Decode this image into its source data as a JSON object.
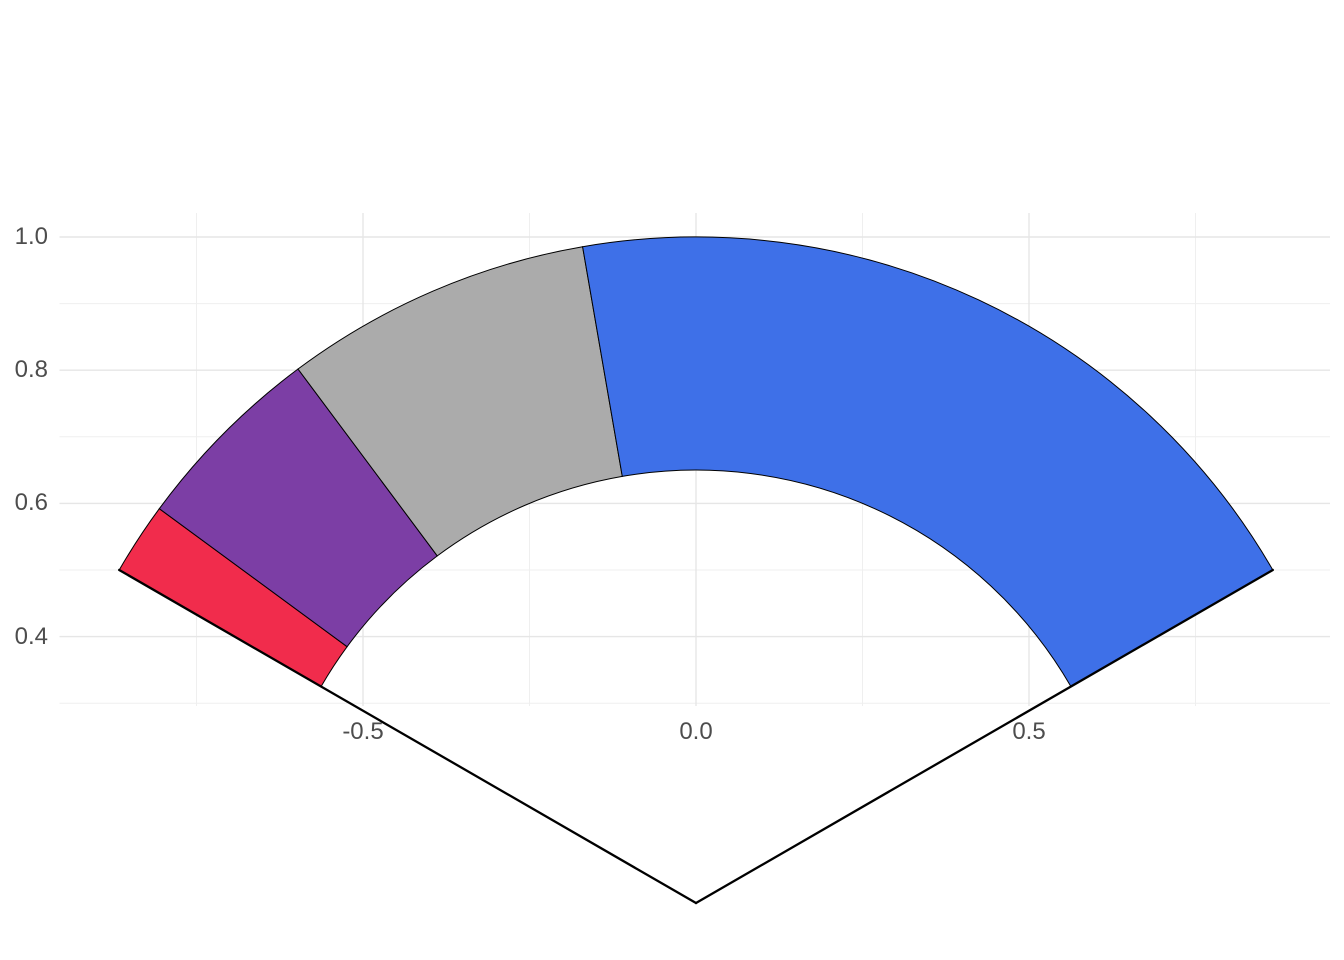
{
  "chart_data": {
    "type": "pie",
    "subtype": "gauge-fan-annular-sector",
    "title": "",
    "xlabel": "",
    "ylabel": "",
    "geometry": {
      "center_data_coords": [
        0,
        0
      ],
      "inner_radius": 0.65,
      "outer_radius": 1.0,
      "start_angle_deg_from_vertical": -60,
      "end_angle_deg_from_vertical": 60,
      "total_span_deg": 120
    },
    "segments": [
      {
        "name": "red",
        "color": "#F12C4C",
        "start_deg": -60,
        "end_deg": -53.7,
        "span_deg": 6.3,
        "fraction": 0.053
      },
      {
        "name": "purple",
        "color": "#7C3EA5",
        "start_deg": -53.7,
        "end_deg": -36.7,
        "span_deg": 17.0,
        "fraction": 0.141
      },
      {
        "name": "gray",
        "color": "#ABABAB",
        "start_deg": -36.7,
        "end_deg": -9.8,
        "span_deg": 26.9,
        "fraction": 0.224
      },
      {
        "name": "blue",
        "color": "#3E70E8",
        "start_deg": -9.8,
        "end_deg": 60,
        "span_deg": 69.8,
        "fraction": 0.582
      }
    ],
    "wedge_outline_color": "#000000",
    "spokes": {
      "color": "#000000",
      "from_radius": 0,
      "to_radius": 1.0,
      "angles_deg": [
        -60,
        60
      ]
    },
    "x_axis": {
      "ticks": [
        {
          "label": "-0.5",
          "value": -0.5
        },
        {
          "label": "0.0",
          "value": 0.0
        },
        {
          "label": "0.5",
          "value": 0.5
        }
      ],
      "minor_values": [
        -0.75,
        -0.25,
        0.25,
        0.75
      ],
      "range": [
        -0.953,
        0.952
      ]
    },
    "y_axis": {
      "ticks": [
        {
          "label": "1.0",
          "value": 1.0
        },
        {
          "label": "0.8",
          "value": 0.8
        },
        {
          "label": "0.6",
          "value": 0.6
        },
        {
          "label": "0.4",
          "value": 0.4
        }
      ],
      "minor_values": [
        0.3,
        0.5,
        0.7,
        0.9
      ],
      "range": [
        0.296,
        1.036
      ]
    },
    "grid": {
      "on": true,
      "major_color": "#e6e6e6",
      "minor_color": "#efefef",
      "background": "#ffffff"
    },
    "axis_text_color": "#4d4d4d",
    "legend": {
      "visible": false
    }
  }
}
